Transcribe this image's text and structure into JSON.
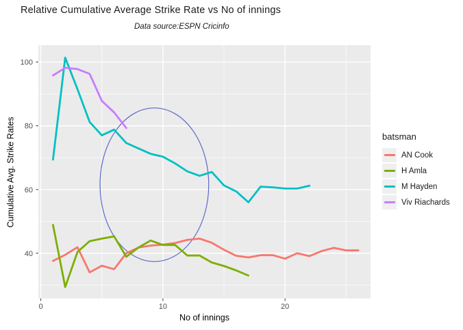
{
  "figure": {
    "title": "Relative Cumulative Average Strike Rate vs No of innings",
    "subtitle": "Data source:ESPN Cricinfo"
  },
  "chart_data": {
    "type": "line",
    "title": "Relative Cumulative Average Strike Rate vs No of innings",
    "subtitle": "Data source:ESPN Cricinfo",
    "xlabel": "No of innings",
    "ylabel": "Cumulative Avg. Strike Rates",
    "x_note": "x values are innings numbers starting at 1, step 1",
    "series": [
      {
        "name": "AN Cook",
        "color": "#F8766D",
        "values": [
          37.6,
          39.5,
          41.9,
          34.0,
          36.1,
          35.0,
          40.0,
          41.8,
          42.4,
          42.7,
          43.2,
          44.2,
          44.6,
          43.3,
          41.1,
          39.2,
          38.7,
          39.4,
          39.4,
          38.3,
          40.0,
          39.1,
          40.7,
          41.7,
          40.9,
          40.9
        ]
      },
      {
        "name": "H Amla",
        "color": "#7CAE00",
        "values": [
          48.9,
          29.4,
          40.4,
          43.8,
          44.6,
          45.3,
          38.9,
          41.8,
          44.0,
          42.6,
          42.6,
          39.3,
          39.3,
          37.1,
          36.0,
          34.6,
          33.0
        ]
      },
      {
        "name": "M Hayden",
        "color": "#00BFC4",
        "values": [
          69.4,
          101.4,
          91.5,
          81.2,
          77.0,
          78.8,
          74.6,
          72.9,
          71.2,
          70.3,
          68.2,
          65.7,
          64.3,
          65.5,
          61.3,
          59.4,
          56.0,
          60.9,
          60.7,
          60.3,
          60.3,
          61.2
        ]
      },
      {
        "name": "Viv Riachards",
        "color": "#C77CFF",
        "values": [
          95.8,
          98.2,
          97.8,
          96.3,
          87.8,
          84.2,
          79.3
        ]
      }
    ],
    "axes": {
      "x": {
        "min": -0.2,
        "max": 27.0,
        "major_ticks": [
          0,
          10,
          20
        ],
        "minor_ticks": [
          5,
          15,
          25
        ],
        "tick_labels": [
          "0",
          "10",
          "20"
        ]
      },
      "y": {
        "min": 25.8,
        "max": 105.3,
        "major_ticks": [
          40,
          60,
          80,
          100
        ],
        "minor_ticks": [
          30,
          50,
          70,
          90
        ],
        "tick_labels": [
          "40",
          "60",
          "80",
          "100"
        ]
      }
    },
    "legend": {
      "title": "batsman",
      "position": "right"
    },
    "annotation_ellipse": {
      "cx": 9.3,
      "cy": 61.5,
      "rx": 4.45,
      "ry": 24.1,
      "color": "#5B68C8"
    },
    "grid": {
      "major": true,
      "minor": true,
      "color": "#FFFFFF"
    },
    "panel_background": "#EBEBEB",
    "tick_text_color": "#4d4d4d",
    "tick_mark_color": "#333333"
  }
}
